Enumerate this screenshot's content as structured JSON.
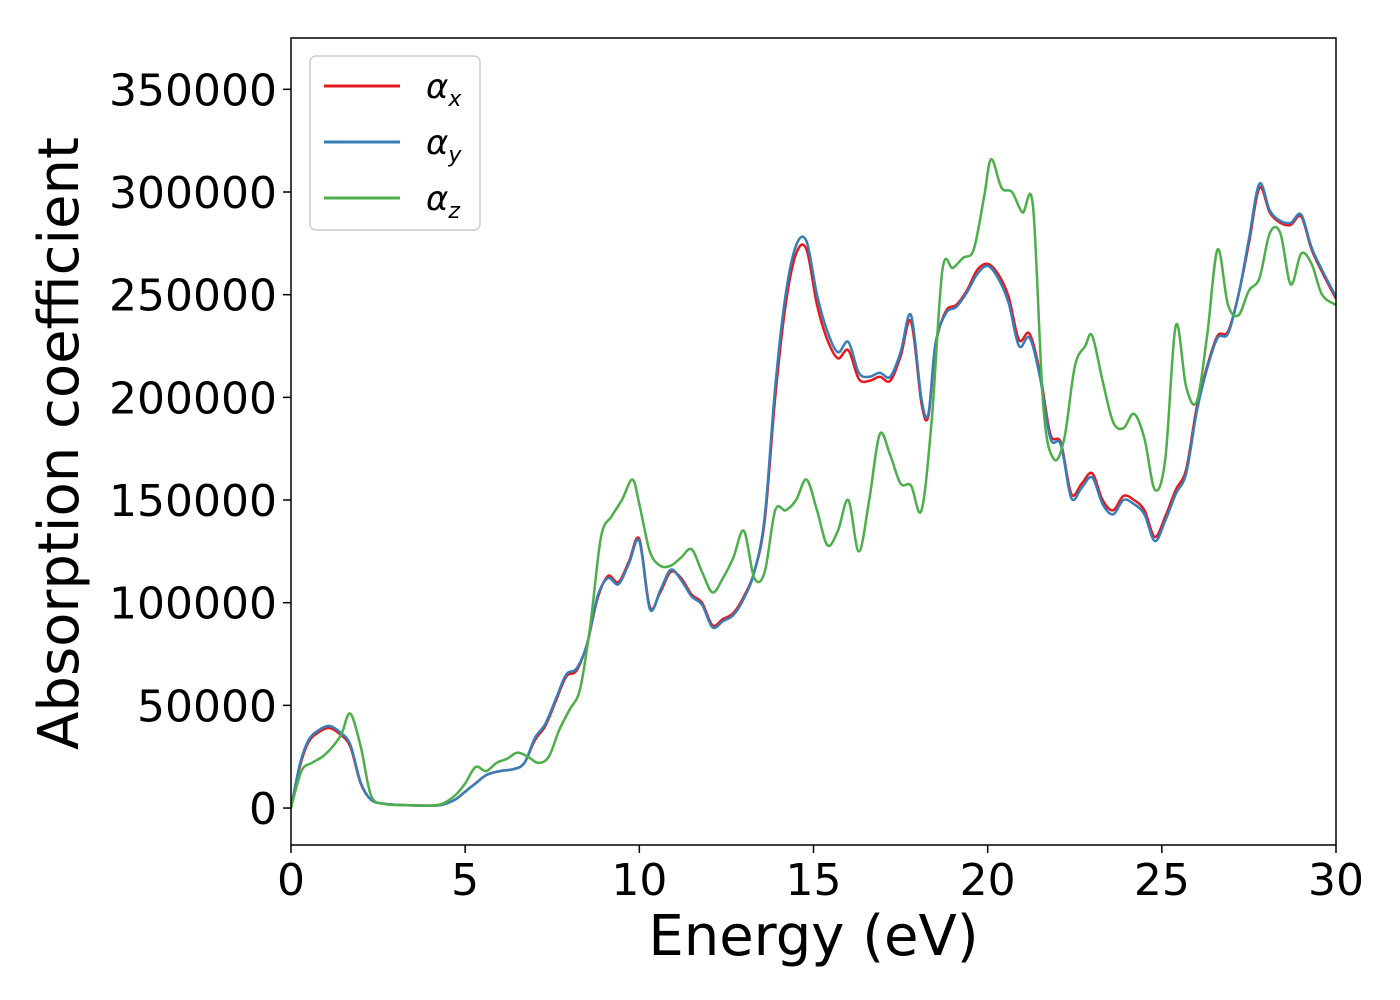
{
  "chart_data": {
    "type": "line",
    "xlabel": "Energy (eV)",
    "ylabel": "Absorption coefficient",
    "xlim": [
      0,
      30
    ],
    "ylim": [
      -18000,
      375000
    ],
    "xticks": [
      0,
      5,
      10,
      15,
      20,
      25,
      30
    ],
    "yticks": [
      0,
      50000,
      100000,
      150000,
      200000,
      250000,
      300000,
      350000
    ],
    "legend_position": "top-left",
    "grid": false,
    "series": [
      {
        "name": "α",
        "subscript": "x",
        "color": "#e41a1c",
        "x": [
          0,
          0.25,
          0.5,
          0.8,
          1.1,
          1.4,
          1.7,
          2.0,
          2.3,
          2.7,
          3.2,
          3.8,
          4.3,
          4.7,
          5.0,
          5.3,
          5.6,
          6.0,
          6.4,
          6.7,
          7.0,
          7.3,
          7.6,
          7.9,
          8.2,
          8.5,
          8.8,
          9.1,
          9.4,
          9.7,
          10.0,
          10.3,
          10.6,
          10.9,
          11.2,
          11.5,
          11.8,
          12.1,
          12.4,
          12.7,
          13.0,
          13.3,
          13.6,
          13.9,
          14.2,
          14.5,
          14.8,
          15.1,
          15.4,
          15.7,
          16.0,
          16.3,
          16.6,
          16.9,
          17.2,
          17.5,
          17.8,
          18.1,
          18.3,
          18.5,
          18.8,
          19.1,
          19.4,
          19.7,
          20.0,
          20.3,
          20.6,
          20.9,
          21.2,
          21.5,
          21.8,
          22.1,
          22.4,
          22.7,
          23.0,
          23.3,
          23.6,
          23.9,
          24.2,
          24.5,
          24.8,
          25.1,
          25.4,
          25.7,
          26.0,
          26.3,
          26.6,
          26.9,
          27.2,
          27.5,
          27.8,
          28.1,
          28.4,
          28.7,
          29.0,
          29.3,
          29.6,
          30.0
        ],
        "y": [
          0,
          20000,
          32000,
          37000,
          39000,
          36000,
          30000,
          12000,
          4000,
          2000,
          1500,
          1200,
          1500,
          4000,
          8000,
          12000,
          16000,
          18000,
          19000,
          22000,
          33000,
          40000,
          52000,
          64000,
          67000,
          80000,
          102000,
          113000,
          110000,
          120000,
          131000,
          98000,
          105000,
          115000,
          112000,
          104000,
          100000,
          89000,
          92000,
          95000,
          103000,
          115000,
          140000,
          200000,
          245000,
          270000,
          272000,
          245000,
          228000,
          219000,
          223000,
          209000,
          208000,
          210000,
          208000,
          220000,
          237000,
          197000,
          191000,
          225000,
          242000,
          245000,
          252000,
          262000,
          265000,
          260000,
          249000,
          228000,
          231000,
          212000,
          182000,
          178000,
          153000,
          158000,
          163000,
          150000,
          145000,
          152000,
          150000,
          145000,
          132000,
          142000,
          155000,
          165000,
          195000,
          215000,
          230000,
          232000,
          250000,
          275000,
          302000,
          290000,
          285000,
          284000,
          288000,
          272000,
          261000,
          248000
        ]
      },
      {
        "name": "α",
        "subscript": "y",
        "color": "#377eb8",
        "x": [
          0,
          0.25,
          0.5,
          0.8,
          1.1,
          1.4,
          1.7,
          2.0,
          2.3,
          2.7,
          3.2,
          3.8,
          4.3,
          4.7,
          5.0,
          5.3,
          5.6,
          6.0,
          6.4,
          6.7,
          7.0,
          7.3,
          7.6,
          7.9,
          8.2,
          8.5,
          8.8,
          9.1,
          9.4,
          9.7,
          10.0,
          10.3,
          10.6,
          10.9,
          11.2,
          11.5,
          11.8,
          12.1,
          12.4,
          12.7,
          13.0,
          13.3,
          13.6,
          13.9,
          14.2,
          14.5,
          14.8,
          15.1,
          15.4,
          15.7,
          16.0,
          16.3,
          16.6,
          16.9,
          17.2,
          17.5,
          17.8,
          18.1,
          18.3,
          18.5,
          18.8,
          19.1,
          19.4,
          19.7,
          20.0,
          20.3,
          20.6,
          20.9,
          21.2,
          21.5,
          21.8,
          22.1,
          22.4,
          22.7,
          23.0,
          23.3,
          23.6,
          23.9,
          24.2,
          24.5,
          24.8,
          25.1,
          25.4,
          25.7,
          26.0,
          26.3,
          26.6,
          26.9,
          27.2,
          27.5,
          27.8,
          28.1,
          28.4,
          28.7,
          29.0,
          29.3,
          29.6,
          30.0
        ],
        "y": [
          0,
          21000,
          33000,
          38000,
          40000,
          37000,
          31000,
          12500,
          4000,
          2000,
          1500,
          1200,
          1500,
          4000,
          8000,
          12000,
          16000,
          18000,
          19000,
          22000,
          34000,
          41000,
          53000,
          65000,
          68000,
          80000,
          103000,
          112000,
          109000,
          119000,
          130000,
          97000,
          106000,
          116000,
          111000,
          103000,
          99000,
          88000,
          91000,
          94000,
          102000,
          115000,
          142000,
          205000,
          250000,
          274000,
          276000,
          250000,
          232000,
          222000,
          227000,
          212000,
          210000,
          212000,
          210000,
          222000,
          240000,
          199000,
          192000,
          226000,
          241000,
          244000,
          251000,
          260000,
          264000,
          258000,
          246000,
          225000,
          229000,
          210000,
          180000,
          177000,
          151000,
          156000,
          161000,
          148000,
          143000,
          150000,
          148000,
          143000,
          130000,
          140000,
          153000,
          163000,
          193000,
          214000,
          229000,
          231000,
          250000,
          277000,
          304000,
          291000,
          286000,
          285000,
          289000,
          273000,
          262000,
          249000
        ]
      },
      {
        "name": "α",
        "subscript": "z",
        "color": "#4daf4a",
        "x": [
          0,
          0.3,
          0.6,
          0.9,
          1.2,
          1.45,
          1.7,
          2.0,
          2.3,
          2.7,
          3.2,
          3.8,
          4.3,
          4.7,
          5.0,
          5.3,
          5.6,
          5.9,
          6.2,
          6.5,
          6.8,
          7.1,
          7.4,
          7.7,
          8.0,
          8.3,
          8.6,
          8.9,
          9.2,
          9.5,
          9.8,
          10.0,
          10.3,
          10.6,
          10.9,
          11.2,
          11.5,
          11.8,
          12.1,
          12.4,
          12.7,
          13.0,
          13.3,
          13.6,
          13.9,
          14.2,
          14.5,
          14.8,
          15.1,
          15.4,
          15.7,
          16.0,
          16.3,
          16.6,
          16.9,
          17.2,
          17.5,
          17.8,
          18.1,
          18.4,
          18.7,
          19.0,
          19.3,
          19.6,
          19.9,
          20.1,
          20.4,
          20.7,
          21.0,
          21.3,
          21.6,
          21.9,
          22.2,
          22.5,
          22.8,
          23.0,
          23.3,
          23.6,
          23.9,
          24.2,
          24.5,
          24.8,
          25.1,
          25.4,
          25.7,
          26.0,
          26.3,
          26.6,
          26.9,
          27.2,
          27.5,
          27.8,
          28.1,
          28.4,
          28.7,
          29.0,
          29.3,
          29.6,
          30.0
        ],
        "y": [
          0,
          18000,
          22000,
          25000,
          30000,
          36000,
          46000,
          30000,
          6000,
          2000,
          1500,
          1200,
          1800,
          6000,
          12000,
          20000,
          18000,
          22000,
          24000,
          27000,
          25000,
          22000,
          25000,
          38000,
          48000,
          58000,
          90000,
          132000,
          142000,
          150000,
          160000,
          148000,
          125000,
          118000,
          118000,
          122000,
          126000,
          115000,
          105000,
          112000,
          122000,
          135000,
          112000,
          115000,
          145000,
          145000,
          150000,
          160000,
          145000,
          128000,
          135000,
          150000,
          125000,
          150000,
          182000,
          172000,
          158000,
          157000,
          145000,
          190000,
          262000,
          263000,
          268000,
          272000,
          298000,
          316000,
          302000,
          300000,
          290000,
          293000,
          195000,
          170000,
          180000,
          215000,
          225000,
          230000,
          208000,
          188000,
          185000,
          192000,
          180000,
          155000,
          170000,
          235000,
          205000,
          198000,
          230000,
          272000,
          245000,
          240000,
          252000,
          258000,
          280000,
          280000,
          255000,
          270000,
          265000,
          250000,
          245000
        ]
      }
    ]
  }
}
